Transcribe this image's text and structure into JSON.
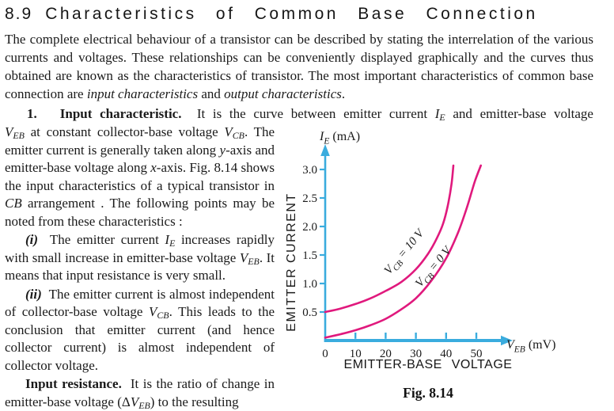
{
  "page": {
    "section_number": "8.9",
    "section_title": "Characteristics of Common Base Connection",
    "intro": "The complete electrical behaviour of a transistor can be described by stating the interrelation of the various currents and voltages. These relationships can be conveniently displayed graphically and the curves thus obtained are known as the characteristics of transistor. The most important characteristics of common base connection are {i}input characteristics{/i} and {i}output characteristics{/i}.",
    "paragraphs": {
      "p1_line1": "{b}1.   Input characteristic.{/b}  It is the curve between emitter current {i}I{/i}{sub}{i}E{/i}{/sub} and emitter-base voltage",
      "p1_rest": "{i}V{/i}{sub}{i}EB{/i}{/sub} at constant collector-base voltage {i}V{/i}{sub}{i}CB{/i}{/sub}. The emitter current is generally taken along {i}y{/i}-axis and emitter-base voltage along {i}x{/i}-axis. Fig. 8.14 shows the input characteristics of a typical transistor in {i}CB{/i} arrangement . The following points may be noted from these characteristics :",
      "item_i": "{b}{i}(i){/i}{/b}  The emitter current {i}I{/i}{sub}{i}E{/i}{/sub} increases rapidly with small increase in emitter-base voltage {i}V{/i}{sub}{i}EB{/i}{/sub}. It means that input resistance is very small.",
      "item_ii": "{b}{i}(ii){/i}{/b}  The emitter current is almost independent of collector-base voltage {i}V{/i}{sub}{i}CB{/i}{/sub}. This leads to the conclusion that emitter current (and hence collector current) is almost independent of collector voltage.",
      "input_resistance": "{b}Input resistance.{/b}  It is the ratio of change in emitter-base voltage (Δ{i}V{/i}{sub}{i}EB{/i}{/sub}) to the resulting"
    }
  },
  "chart_data": {
    "type": "line",
    "figure_caption": "Fig. 8.14",
    "xlabel": "{i}V{/i}{sub}{i}EB{/i}{/sub} (mV)",
    "ylabel": "{i}I{/i}{sub}{i}E{/i}{/sub} (mA)",
    "x_axis_caption": "EMITTER-BASE VOLTAGE",
    "y_axis_caption": "EMITTER CURRENT",
    "xlim": [
      0,
      57
    ],
    "ylim": [
      0,
      3.2
    ],
    "xticks": [
      0,
      10,
      20,
      30,
      40,
      50
    ],
    "yticks": [
      0.5,
      1.0,
      1.5,
      2.0,
      2.5,
      3.0
    ],
    "grid": false,
    "legend_position": "labels-along-curves",
    "colors": {
      "axis": "#3aacde",
      "curve": "#e0197d",
      "text": "#1a1a1a"
    },
    "series": [
      {
        "name": "V_CB = 10 V",
        "label": "V{sub}CB{/sub} = 10 V",
        "points": [
          [
            0,
            0.5
          ],
          [
            5,
            0.56
          ],
          [
            10,
            0.64
          ],
          [
            15,
            0.74
          ],
          [
            20,
            0.87
          ],
          [
            25,
            1.02
          ],
          [
            30,
            1.25
          ],
          [
            34,
            1.52
          ],
          [
            37,
            1.8
          ],
          [
            39,
            2.05
          ],
          [
            40.5,
            2.35
          ],
          [
            41.8,
            2.75
          ],
          [
            42.4,
            3.07
          ]
        ]
      },
      {
        "name": "V_CB = 0 V",
        "label": "V{sub}CB{/sub} = 0 V",
        "points": [
          [
            0,
            0.05
          ],
          [
            5,
            0.11
          ],
          [
            10,
            0.18
          ],
          [
            15,
            0.27
          ],
          [
            20,
            0.38
          ],
          [
            25,
            0.54
          ],
          [
            30,
            0.74
          ],
          [
            35,
            1.04
          ],
          [
            40,
            1.44
          ],
          [
            44,
            1.9
          ],
          [
            47,
            2.35
          ],
          [
            49.5,
            2.79
          ],
          [
            51.5,
            3.07
          ]
        ]
      }
    ]
  }
}
